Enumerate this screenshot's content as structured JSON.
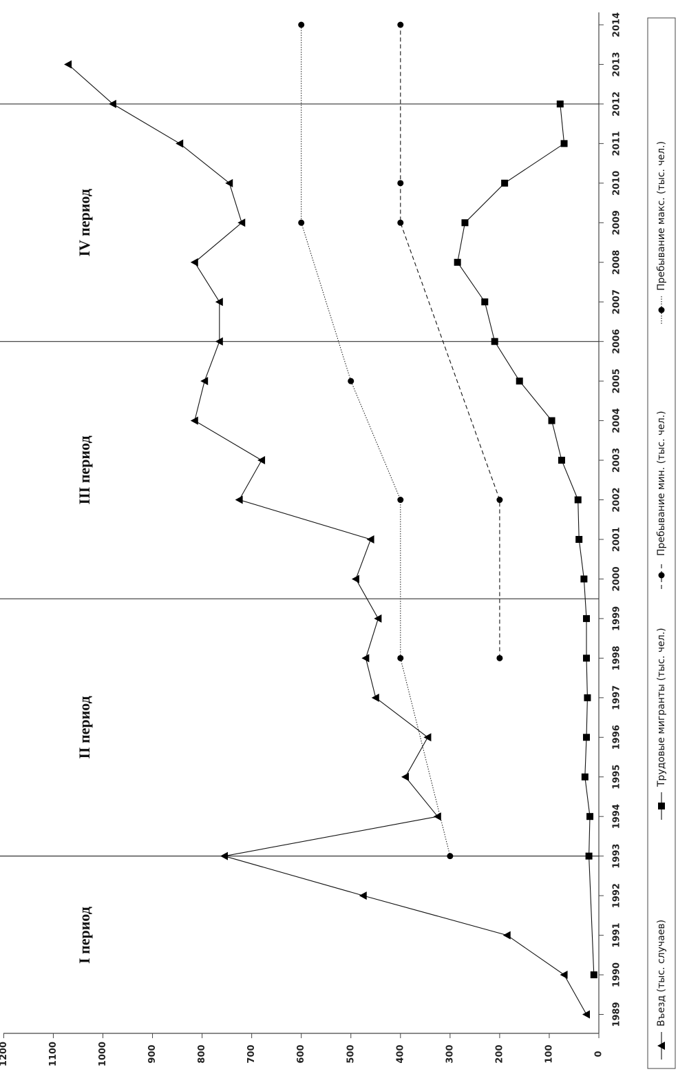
{
  "chart_data": {
    "type": "line",
    "orientation": "rotated-90-ccw",
    "x": [
      1989,
      1990,
      1991,
      1992,
      1993,
      1994,
      1995,
      1996,
      1997,
      1998,
      1999,
      2000,
      2001,
      2002,
      2003,
      2004,
      2005,
      2006,
      2007,
      2008,
      2009,
      2010,
      2011,
      2012,
      2013,
      2014
    ],
    "x_tick_labels": [
      "1989",
      "1990",
      "1991",
      "1992",
      "1993",
      "1994",
      "1995",
      "1996",
      "1997",
      "1998",
      "1999",
      "2000",
      "2001",
      "2002",
      "2003",
      "2004",
      "2005",
      "2006",
      "2007",
      "2008",
      "2009",
      "2010",
      "2011",
      "2012",
      "2013",
      "2014"
    ],
    "y_tick_labels": [
      "0",
      "100",
      "200",
      "300",
      "400",
      "500",
      "600",
      "700",
      "800",
      "900",
      "1000",
      "1100",
      "1200"
    ],
    "ylim": [
      0,
      1200
    ],
    "grid": false,
    "legend_position": "right",
    "period_dividers": [
      1993,
      1999.5,
      2006,
      2012
    ],
    "period_labels": [
      {
        "text": "I период",
        "center_year": 1991
      },
      {
        "text": "II период",
        "center_year": 1996.25
      },
      {
        "text": "III период",
        "center_year": 2002.75
      },
      {
        "text": "IV период",
        "center_year": 2009
      }
    ],
    "series": [
      {
        "name": "Въезд (тыс. случаев)",
        "marker": "triangle",
        "line": "solid",
        "points": [
          [
            1989,
            25
          ],
          [
            1990,
            70
          ],
          [
            1991,
            185
          ],
          [
            1992,
            475
          ],
          [
            1993,
            755
          ],
          [
            1994,
            325
          ],
          [
            1995,
            390
          ],
          [
            1996,
            345
          ],
          [
            1997,
            450
          ],
          [
            1998,
            470
          ],
          [
            1999,
            445
          ],
          [
            2000,
            490
          ],
          [
            2001,
            460
          ],
          [
            2002,
            725
          ],
          [
            2003,
            680
          ],
          [
            2004,
            815
          ],
          [
            2005,
            795
          ],
          [
            2006,
            765
          ],
          [
            2007,
            765
          ],
          [
            2008,
            815
          ],
          [
            2009,
            720
          ],
          [
            2010,
            745
          ],
          [
            2011,
            845
          ],
          [
            2012,
            980
          ],
          [
            2013,
            1070
          ]
        ]
      },
      {
        "name": "Трудовые мигранты (тыс. чел.)",
        "marker": "square",
        "line": "solid",
        "points": [
          [
            1990,
            10
          ],
          [
            1993,
            20
          ],
          [
            1994,
            18
          ],
          [
            1995,
            28
          ],
          [
            1996,
            25
          ],
          [
            1997,
            23
          ],
          [
            1998,
            25
          ],
          [
            1999,
            25
          ],
          [
            2000,
            30
          ],
          [
            2001,
            40
          ],
          [
            2002,
            42
          ],
          [
            2003,
            75
          ],
          [
            2004,
            95
          ],
          [
            2005,
            160
          ],
          [
            2006,
            210
          ],
          [
            2007,
            230
          ],
          [
            2008,
            285
          ],
          [
            2009,
            270
          ],
          [
            2010,
            190
          ],
          [
            2011,
            70
          ],
          [
            2012,
            78
          ]
        ]
      },
      {
        "name": "Пребывание мин. (тыс. чел.)",
        "marker": "circle",
        "line": "dashed",
        "points": [
          [
            1998,
            200
          ],
          [
            2002,
            200
          ],
          [
            2009,
            400
          ],
          [
            2010,
            400
          ],
          [
            2014,
            400
          ]
        ]
      },
      {
        "name": "Пребывание макс. (тыс. чел.)",
        "marker": "circle",
        "line": "dotted",
        "points": [
          [
            1993,
            300
          ],
          [
            1998,
            400
          ],
          [
            2002,
            400
          ],
          [
            2005,
            500
          ],
          [
            2009,
            600
          ],
          [
            2014,
            600
          ]
        ]
      }
    ]
  }
}
